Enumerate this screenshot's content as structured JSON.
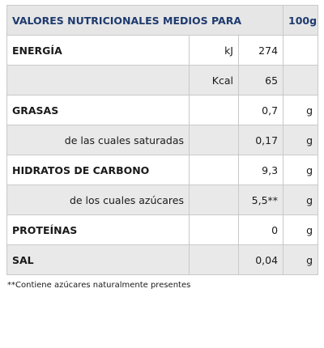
{
  "header": {
    "title": "VALORES NUTRICIONALES MEDIOS PARA",
    "amount": "100g"
  },
  "rows": [
    {
      "label": "ENERGÍA",
      "unit": "kJ",
      "value": "274",
      "g": ""
    },
    {
      "label": "",
      "unit": "Kcal",
      "value": "65",
      "g": ""
    },
    {
      "label": "GRASAS",
      "unit": "",
      "value": "0,7",
      "g": "g"
    },
    {
      "label": "de las cuales saturadas",
      "unit": "",
      "value": "0,17",
      "g": "g"
    },
    {
      "label": "HIDRATOS DE CARBONO",
      "unit": "",
      "value": "9,3",
      "g": "g"
    },
    {
      "label": "de los cuales azúcares",
      "unit": "",
      "value": "5,5**",
      "g": "g"
    },
    {
      "label": "PROTEÍNAS",
      "unit": "",
      "value": "0",
      "g": "g"
    },
    {
      "label": "SAL",
      "unit": "",
      "value": "0,04",
      "g": "g"
    }
  ],
  "footnote": "**Contiene azúcares naturalmente presentes"
}
